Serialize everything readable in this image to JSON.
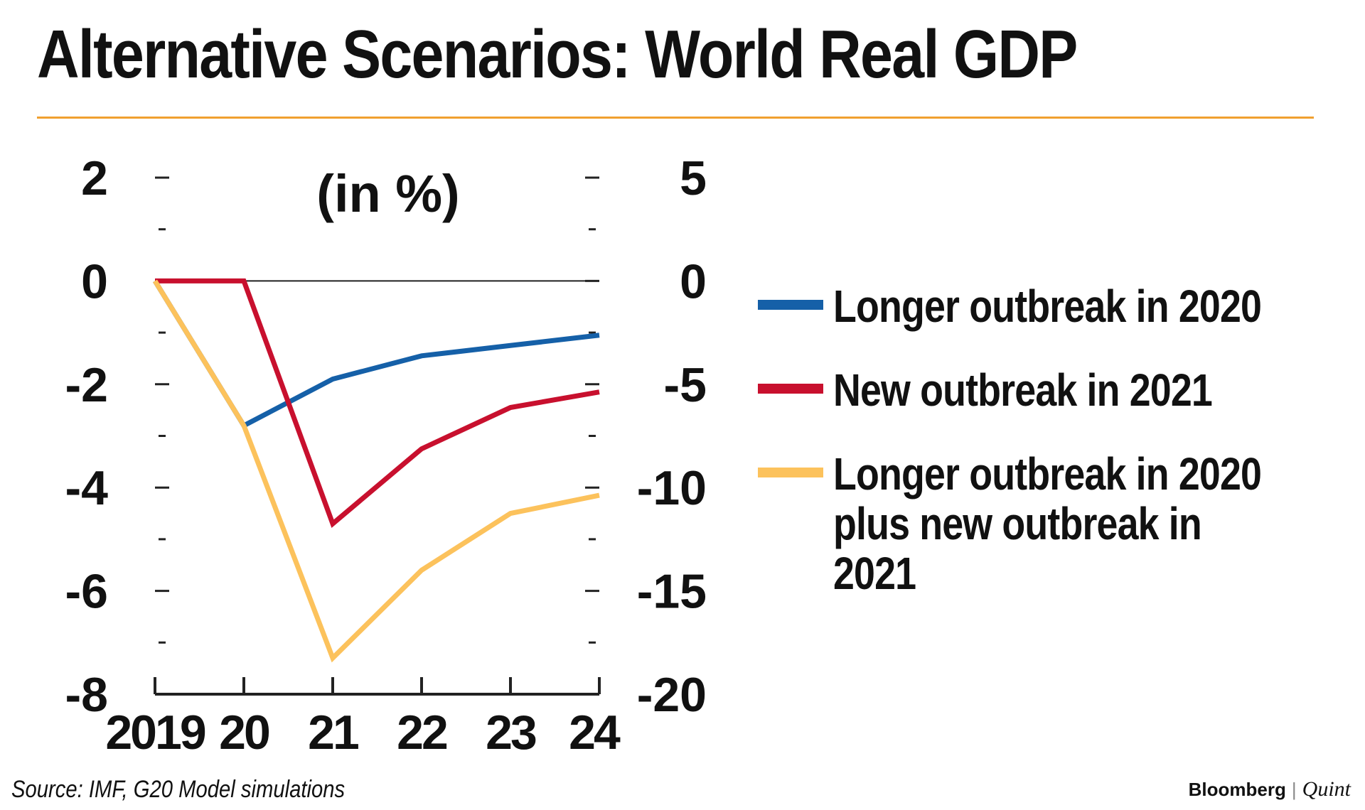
{
  "title": "Alternative Scenarios: World Real GDP",
  "source": "Source: IMF, G20 Model simulations",
  "brand": {
    "main": "Bloomberg",
    "sep": "|",
    "sub": "Quint"
  },
  "colors": {
    "rule": "#F0A030",
    "blue": "#1560A8",
    "red": "#C8102E",
    "yellow": "#FCC25C",
    "zero": "#222222"
  },
  "chart_data": {
    "type": "line",
    "unit_label": "(in %)",
    "categories": [
      "2019",
      "20",
      "21",
      "22",
      "23",
      "24"
    ],
    "y_left": {
      "ticks": [
        "2",
        "0",
        "-2",
        "-4",
        "-6",
        "-8"
      ],
      "range": [
        -8,
        2
      ],
      "step": 2
    },
    "y_right": {
      "ticks": [
        "5",
        "0",
        "-5",
        "-10",
        "-15",
        "-20"
      ],
      "range": [
        -20,
        5
      ],
      "step": 5
    },
    "series": [
      {
        "name": "Longer outbreak in 2020",
        "color": "#1560A8",
        "axis": "left",
        "values": [
          0,
          -2.8,
          -1.9,
          -1.45,
          -1.25,
          -1.05
        ]
      },
      {
        "name": "New outbreak in 2021",
        "color": "#C8102E",
        "axis": "left",
        "values": [
          0,
          0,
          -4.7,
          -3.25,
          -2.45,
          -2.15
        ]
      },
      {
        "name": "Longer outbreak in 2020\nplus new outbreak in 2021",
        "color": "#FCC25C",
        "axis": "left",
        "values": [
          0,
          -2.8,
          -7.3,
          -5.6,
          -4.5,
          -4.15
        ]
      }
    ],
    "zero_line": true
  }
}
